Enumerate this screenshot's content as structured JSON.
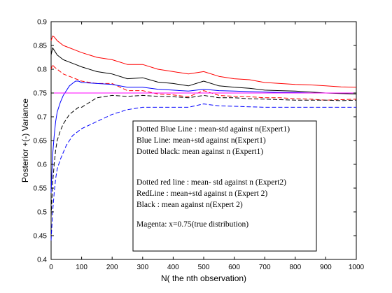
{
  "chart_data": {
    "type": "line",
    "title": "",
    "xlabel": "N( the nth observation)",
    "ylabel": "Posterior +(-) Variance",
    "xlim": [
      0,
      1000
    ],
    "ylim": [
      0.4,
      0.9
    ],
    "x_ticks": [
      0,
      100,
      200,
      300,
      400,
      500,
      600,
      700,
      800,
      900,
      1000
    ],
    "y_ticks": [
      0.4,
      0.45,
      0.5,
      0.55,
      0.6,
      0.65,
      0.7,
      0.75,
      0.8,
      0.85,
      0.9
    ],
    "grid": false,
    "legend_placement": "center-right",
    "legend": [
      "Dotted Blue Line : mean-std against n(Expert1)",
      "Blue Line: mean+std against n(Expert1)",
      "Dotted black: mean against n (Expert1)",
      "Dotted red line : mean- std against n (Expert2)",
      "RedLine : mean+std against n (Expert 2)",
      "Black : mean against n(Expert 2)",
      "Magenta: x=0.75(true distribution)"
    ],
    "series": [
      {
        "color": "#ff0000",
        "style": "solid",
        "x": [
          0,
          5,
          10,
          20,
          40,
          60,
          80,
          100,
          150,
          200,
          250,
          300,
          350,
          400,
          450,
          500,
          550,
          600,
          650,
          700,
          750,
          800,
          850,
          900,
          950,
          1000
        ],
        "y": [
          0.86,
          0.87,
          0.868,
          0.86,
          0.85,
          0.845,
          0.84,
          0.835,
          0.825,
          0.82,
          0.81,
          0.81,
          0.8,
          0.795,
          0.79,
          0.795,
          0.785,
          0.78,
          0.778,
          0.772,
          0.77,
          0.768,
          0.767,
          0.765,
          0.763,
          0.762
        ]
      },
      {
        "color": "#000000",
        "style": "solid",
        "x": [
          0,
          5,
          10,
          20,
          40,
          60,
          80,
          100,
          150,
          200,
          250,
          300,
          350,
          400,
          450,
          500,
          550,
          600,
          650,
          700,
          750,
          800,
          850,
          900,
          950,
          1000
        ],
        "y": [
          0.83,
          0.845,
          0.84,
          0.83,
          0.82,
          0.815,
          0.81,
          0.805,
          0.795,
          0.79,
          0.78,
          0.782,
          0.773,
          0.77,
          0.765,
          0.775,
          0.765,
          0.762,
          0.76,
          0.756,
          0.755,
          0.754,
          0.752,
          0.75,
          0.749,
          0.748
        ]
      },
      {
        "color": "#ff0000",
        "style": "dashed",
        "x": [
          0,
          5,
          10,
          20,
          40,
          60,
          80,
          100,
          150,
          200,
          250,
          300,
          350,
          400,
          450,
          500,
          550,
          600,
          650,
          700,
          750,
          800,
          850,
          900,
          950,
          1000
        ],
        "y": [
          0.8,
          0.81,
          0.805,
          0.8,
          0.79,
          0.785,
          0.78,
          0.775,
          0.77,
          0.77,
          0.755,
          0.755,
          0.748,
          0.746,
          0.742,
          0.755,
          0.745,
          0.743,
          0.742,
          0.74,
          0.74,
          0.738,
          0.737,
          0.735,
          0.736,
          0.737
        ]
      },
      {
        "color": "#0000ff",
        "style": "solid",
        "x": [
          0,
          5,
          10,
          15,
          20,
          30,
          40,
          50,
          60,
          70,
          80,
          90,
          100,
          150,
          200,
          250,
          300,
          350,
          400,
          450,
          500,
          550,
          600,
          650,
          700,
          750,
          800,
          850,
          900,
          950,
          1000
        ],
        "y": [
          0.54,
          0.62,
          0.66,
          0.69,
          0.71,
          0.73,
          0.745,
          0.755,
          0.765,
          0.77,
          0.775,
          0.775,
          0.772,
          0.77,
          0.768,
          0.762,
          0.762,
          0.758,
          0.756,
          0.754,
          0.758,
          0.755,
          0.754,
          0.753,
          0.752,
          0.751,
          0.751,
          0.75,
          0.75,
          0.75,
          0.75
        ]
      },
      {
        "color": "#000000",
        "style": "dashed",
        "x": [
          0,
          5,
          10,
          15,
          20,
          30,
          40,
          50,
          60,
          70,
          80,
          90,
          100,
          150,
          200,
          250,
          300,
          350,
          400,
          450,
          500,
          550,
          600,
          650,
          700,
          750,
          800,
          850,
          900,
          950,
          1000
        ],
        "y": [
          0.49,
          0.56,
          0.6,
          0.63,
          0.65,
          0.67,
          0.685,
          0.695,
          0.705,
          0.71,
          0.715,
          0.72,
          0.72,
          0.74,
          0.745,
          0.743,
          0.745,
          0.743,
          0.742,
          0.74,
          0.745,
          0.74,
          0.74,
          0.738,
          0.737,
          0.736,
          0.735,
          0.735,
          0.735,
          0.734,
          0.735
        ]
      },
      {
        "color": "#0000ff",
        "style": "dashed",
        "x": [
          0,
          5,
          10,
          15,
          20,
          30,
          40,
          50,
          60,
          70,
          80,
          90,
          100,
          150,
          200,
          250,
          300,
          350,
          400,
          450,
          500,
          550,
          600,
          650,
          700,
          750,
          800,
          850,
          900,
          950,
          1000
        ],
        "y": [
          0.44,
          0.5,
          0.54,
          0.57,
          0.59,
          0.61,
          0.625,
          0.64,
          0.65,
          0.66,
          0.665,
          0.67,
          0.675,
          0.69,
          0.705,
          0.715,
          0.72,
          0.72,
          0.72,
          0.72,
          0.727,
          0.723,
          0.722,
          0.721,
          0.72,
          0.72,
          0.72,
          0.72,
          0.72,
          0.72,
          0.72
        ]
      },
      {
        "color": "#ff00ff",
        "style": "solid",
        "x": [
          0,
          1000
        ],
        "y": [
          0.75,
          0.75
        ]
      }
    ]
  }
}
